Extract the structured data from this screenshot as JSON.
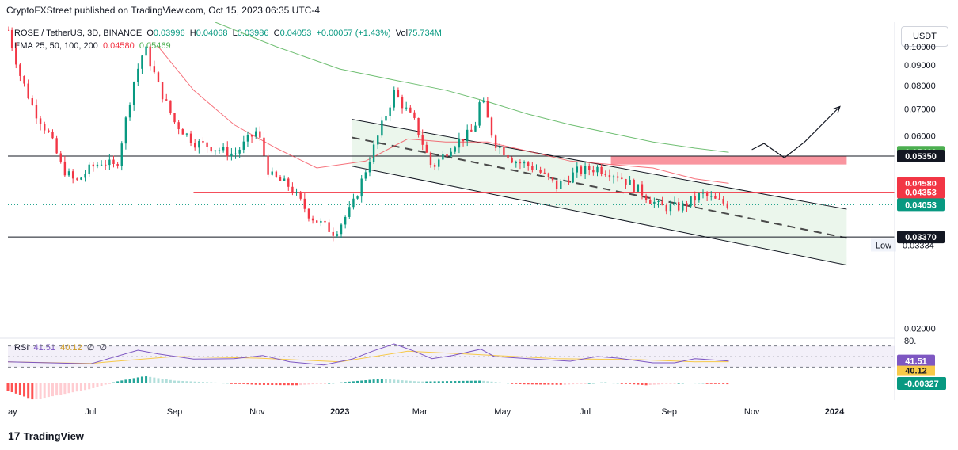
{
  "header": {
    "publisher": "CryptoFXStreet published on TradingView.com, Oct 15, 2023 06:35 UTC-4"
  },
  "legend": {
    "symbol": "ROSE / TetherUS, 3D, BINANCE",
    "open_label": "O",
    "open": "0.03996",
    "high_label": "H",
    "high": "0.04068",
    "low_label": "L",
    "low": "0.03986",
    "close_label": "C",
    "close": "0.04053",
    "change": "+0.00057 (+1.43%)",
    "vol_label": "Vol",
    "vol": "75.734M",
    "ema_label": "EMA 25, 50, 100, 200",
    "ema_a": "0.04580",
    "ema_b": "0.05469"
  },
  "rsi_legend": {
    "label": "RSI",
    "v1": "41.51",
    "v2": "40.12",
    "v3": "∅",
    "v4": "∅"
  },
  "currency_button": "USDT",
  "footer": {
    "logo_mark": "17",
    "logo_text": "TradingView"
  },
  "colors": {
    "up": "#089981",
    "down": "#f23645",
    "ema_red": "#f23645",
    "ema_green": "#4caf50",
    "channel_fill": "#e8f5e9",
    "rsi_line": "#7e57c2",
    "rsi_ma": "#f7c948",
    "resistance_box": "#f7727f"
  },
  "chart_data": {
    "type": "candlestick",
    "title": "ROSE / TetherUS, 3D, BINANCE",
    "y_scale": "log",
    "ylim": [
      0.0195,
      0.115
    ],
    "y_ticks": [
      "0.10000",
      "0.09000",
      "0.08000",
      "0.07000",
      "0.06000",
      "0.02000"
    ],
    "x_ticks": [
      "ay",
      "Jul",
      "Sep",
      "Nov",
      "2023",
      "Mar",
      "May",
      "Jul",
      "Sep",
      "Nov",
      "2024"
    ],
    "x_tick_dates": [
      "2022-05-01",
      "2022-07-01",
      "2022-09-01",
      "2022-11-01",
      "2023-01-01",
      "2023-03-01",
      "2023-05-01",
      "2023-07-01",
      "2023-09-01",
      "2023-11-01",
      "2024-01-01"
    ],
    "close_series": [
      {
        "date": "2022-05-01",
        "close": 0.11
      },
      {
        "date": "2022-05-10",
        "close": 0.085
      },
      {
        "date": "2022-05-20",
        "close": 0.07
      },
      {
        "date": "2022-06-01",
        "close": 0.06
      },
      {
        "date": "2022-06-10",
        "close": 0.05
      },
      {
        "date": "2022-06-20",
        "close": 0.046
      },
      {
        "date": "2022-07-01",
        "close": 0.05
      },
      {
        "date": "2022-07-10",
        "close": 0.052
      },
      {
        "date": "2022-07-20",
        "close": 0.05
      },
      {
        "date": "2022-08-01",
        "close": 0.08
      },
      {
        "date": "2022-08-10",
        "close": 0.1
      },
      {
        "date": "2022-08-20",
        "close": 0.08
      },
      {
        "date": "2022-09-01",
        "close": 0.065
      },
      {
        "date": "2022-09-15",
        "close": 0.058
      },
      {
        "date": "2022-10-01",
        "close": 0.056
      },
      {
        "date": "2022-10-15",
        "close": 0.054
      },
      {
        "date": "2022-11-01",
        "close": 0.062
      },
      {
        "date": "2022-11-10",
        "close": 0.048
      },
      {
        "date": "2022-11-25",
        "close": 0.045
      },
      {
        "date": "2022-12-10",
        "close": 0.038
      },
      {
        "date": "2022-12-28",
        "close": 0.0345
      },
      {
        "date": "2023-01-10",
        "close": 0.04
      },
      {
        "date": "2023-01-25",
        "close": 0.055
      },
      {
        "date": "2023-02-10",
        "close": 0.077
      },
      {
        "date": "2023-02-25",
        "close": 0.065
      },
      {
        "date": "2023-03-10",
        "close": 0.05
      },
      {
        "date": "2023-03-25",
        "close": 0.057
      },
      {
        "date": "2023-04-10",
        "close": 0.062
      },
      {
        "date": "2023-04-15",
        "close": 0.075
      },
      {
        "date": "2023-04-25",
        "close": 0.058
      },
      {
        "date": "2023-05-10",
        "close": 0.052
      },
      {
        "date": "2023-05-25",
        "close": 0.05
      },
      {
        "date": "2023-06-10",
        "close": 0.045
      },
      {
        "date": "2023-06-25",
        "close": 0.049
      },
      {
        "date": "2023-07-10",
        "close": 0.05
      },
      {
        "date": "2023-07-25",
        "close": 0.048
      },
      {
        "date": "2023-08-10",
        "close": 0.044
      },
      {
        "date": "2023-08-25",
        "close": 0.04
      },
      {
        "date": "2023-09-10",
        "close": 0.04
      },
      {
        "date": "2023-09-25",
        "close": 0.043
      },
      {
        "date": "2023-10-05",
        "close": 0.0415
      },
      {
        "date": "2023-10-15",
        "close": 0.04053
      }
    ],
    "ema_red_series": [
      {
        "date": "2022-08-20",
        "value": 0.1
      },
      {
        "date": "2022-09-15",
        "value": 0.078
      },
      {
        "date": "2022-10-15",
        "value": 0.064
      },
      {
        "date": "2022-11-15",
        "value": 0.056
      },
      {
        "date": "2022-12-15",
        "value": 0.05
      },
      {
        "date": "2023-01-20",
        "value": 0.052
      },
      {
        "date": "2023-02-20",
        "value": 0.059
      },
      {
        "date": "2023-03-20",
        "value": 0.058
      },
      {
        "date": "2023-04-20",
        "value": 0.058
      },
      {
        "date": "2023-05-20",
        "value": 0.055
      },
      {
        "date": "2023-06-20",
        "value": 0.052
      },
      {
        "date": "2023-07-20",
        "value": 0.051
      },
      {
        "date": "2023-08-20",
        "value": 0.05
      },
      {
        "date": "2023-09-20",
        "value": 0.047
      },
      {
        "date": "2023-10-15",
        "value": 0.0458
      }
    ],
    "ema_green_series": [
      {
        "date": "2022-10-01",
        "value": 0.115
      },
      {
        "date": "2022-11-15",
        "value": 0.1
      },
      {
        "date": "2023-01-01",
        "value": 0.088
      },
      {
        "date": "2023-02-15",
        "value": 0.082
      },
      {
        "date": "2023-03-20",
        "value": 0.078
      },
      {
        "date": "2023-04-20",
        "value": 0.073
      },
      {
        "date": "2023-05-20",
        "value": 0.068
      },
      {
        "date": "2023-06-20",
        "value": 0.064
      },
      {
        "date": "2023-07-20",
        "value": 0.061
      },
      {
        "date": "2023-08-20",
        "value": 0.058
      },
      {
        "date": "2023-09-20",
        "value": 0.056
      },
      {
        "date": "2023-10-15",
        "value": 0.05469
      }
    ],
    "channel": {
      "upper": [
        {
          "date": "2023-01-10",
          "value": 0.066
        },
        {
          "date": "2024-01-10",
          "value": 0.0395
        }
      ],
      "lower": [
        {
          "date": "2023-01-10",
          "value": 0.0505
        },
        {
          "date": "2024-01-10",
          "value": 0.0287
        }
      ],
      "mid": [
        {
          "date": "2023-01-10",
          "value": 0.0595
        },
        {
          "date": "2024-01-10",
          "value": 0.0335
        }
      ]
    },
    "resistance_zone": {
      "date_start": "2023-07-20",
      "date_end": "2024-01-10",
      "low": 0.051,
      "high": 0.0535
    },
    "horizontal_lines": [
      {
        "value": 0.0535,
        "color": "#131722"
      },
      {
        "value": 0.0337,
        "color": "#131722"
      },
      {
        "value": 0.04353,
        "color": "#f23645",
        "date_start": "2022-09-15"
      }
    ],
    "projection_path": [
      {
        "date": "2023-11-01",
        "value": 0.0555
      },
      {
        "date": "2023-11-10",
        "value": 0.0575
      },
      {
        "date": "2023-11-25",
        "value": 0.053
      },
      {
        "date": "2023-12-10",
        "value": 0.058
      },
      {
        "date": "2024-01-05",
        "value": 0.071
      }
    ],
    "price_labels": [
      {
        "text": "0.05469",
        "value": 0.05469,
        "bg": "#4caf50",
        "fg": "#ffffff"
      },
      {
        "text": "0.05350",
        "value": 0.0535,
        "bg": "#131722",
        "fg": "#ffffff"
      },
      {
        "text": "0.04580",
        "value": 0.0458,
        "bg": "#f23645",
        "fg": "#ffffff"
      },
      {
        "text": "0.04353",
        "value": 0.04353,
        "bg": "#f23645",
        "fg": "#ffffff"
      },
      {
        "text": "0.04053",
        "value": 0.04053,
        "bg": "#089981",
        "fg": "#ffffff"
      },
      {
        "text": "0.03370",
        "value": 0.0337,
        "bg": "#131722",
        "fg": "#ffffff"
      }
    ],
    "low_marker": {
      "label": "Low",
      "value_text": "0.03334",
      "value": 0.03334
    },
    "rsi": {
      "ylim": [
        20,
        80
      ],
      "upper_band": 70,
      "lower_band": 30,
      "axis_label": "80.",
      "rsi_value_label": "41.51",
      "ma_value_label": "40.12",
      "series": [
        {
          "date": "2022-05-01",
          "value": 40
        },
        {
          "date": "2022-06-01",
          "value": 38
        },
        {
          "date": "2022-07-01",
          "value": 36
        },
        {
          "date": "2022-08-05",
          "value": 62
        },
        {
          "date": "2022-08-20",
          "value": 55
        },
        {
          "date": "2022-09-15",
          "value": 45
        },
        {
          "date": "2022-10-15",
          "value": 46
        },
        {
          "date": "2022-11-05",
          "value": 52
        },
        {
          "date": "2022-11-25",
          "value": 40
        },
        {
          "date": "2022-12-20",
          "value": 34
        },
        {
          "date": "2023-01-10",
          "value": 45
        },
        {
          "date": "2023-01-25",
          "value": 60
        },
        {
          "date": "2023-02-10",
          "value": 74
        },
        {
          "date": "2023-02-25",
          "value": 60
        },
        {
          "date": "2023-03-10",
          "value": 46
        },
        {
          "date": "2023-03-25",
          "value": 52
        },
        {
          "date": "2023-04-15",
          "value": 64
        },
        {
          "date": "2023-04-25",
          "value": 50
        },
        {
          "date": "2023-05-20",
          "value": 46
        },
        {
          "date": "2023-06-20",
          "value": 41
        },
        {
          "date": "2023-07-10",
          "value": 50
        },
        {
          "date": "2023-07-25",
          "value": 47
        },
        {
          "date": "2023-08-20",
          "value": 38
        },
        {
          "date": "2023-09-05",
          "value": 38
        },
        {
          "date": "2023-09-20",
          "value": 46
        },
        {
          "date": "2023-10-15",
          "value": 41.51
        }
      ],
      "ma_series": [
        {
          "date": "2022-05-01",
          "value": 40
        },
        {
          "date": "2022-07-01",
          "value": 37
        },
        {
          "date": "2022-09-01",
          "value": 50
        },
        {
          "date": "2022-11-01",
          "value": 47
        },
        {
          "date": "2023-01-01",
          "value": 40
        },
        {
          "date": "2023-02-20",
          "value": 60
        },
        {
          "date": "2023-04-10",
          "value": 54
        },
        {
          "date": "2023-06-10",
          "value": 46
        },
        {
          "date": "2023-08-10",
          "value": 44
        },
        {
          "date": "2023-09-20",
          "value": 40
        },
        {
          "date": "2023-10-15",
          "value": 40.12
        }
      ]
    },
    "macd_hist": {
      "value_label": "-0.00327",
      "series": [
        {
          "date": "2022-05-01",
          "value": -0.004
        },
        {
          "date": "2022-05-20",
          "value": -0.009
        },
        {
          "date": "2022-06-10",
          "value": -0.006
        },
        {
          "date": "2022-07-01",
          "value": -0.003
        },
        {
          "date": "2022-07-20",
          "value": 0.001
        },
        {
          "date": "2022-08-10",
          "value": 0.004
        },
        {
          "date": "2022-09-01",
          "value": 0.0015
        },
        {
          "date": "2022-10-01",
          "value": 0.0005
        },
        {
          "date": "2022-11-01",
          "value": -0.0008
        },
        {
          "date": "2022-12-01",
          "value": -0.001
        },
        {
          "date": "2023-01-01",
          "value": 0.0005
        },
        {
          "date": "2023-02-01",
          "value": 0.0025
        },
        {
          "date": "2023-03-01",
          "value": 0.001
        },
        {
          "date": "2023-04-15",
          "value": 0.0015
        },
        {
          "date": "2023-05-15",
          "value": -0.0005
        },
        {
          "date": "2023-06-15",
          "value": -0.0008
        },
        {
          "date": "2023-07-15",
          "value": 0.0006
        },
        {
          "date": "2023-08-15",
          "value": -0.001
        },
        {
          "date": "2023-09-15",
          "value": 0.0004
        },
        {
          "date": "2023-10-15",
          "value": -0.0005
        }
      ]
    }
  }
}
